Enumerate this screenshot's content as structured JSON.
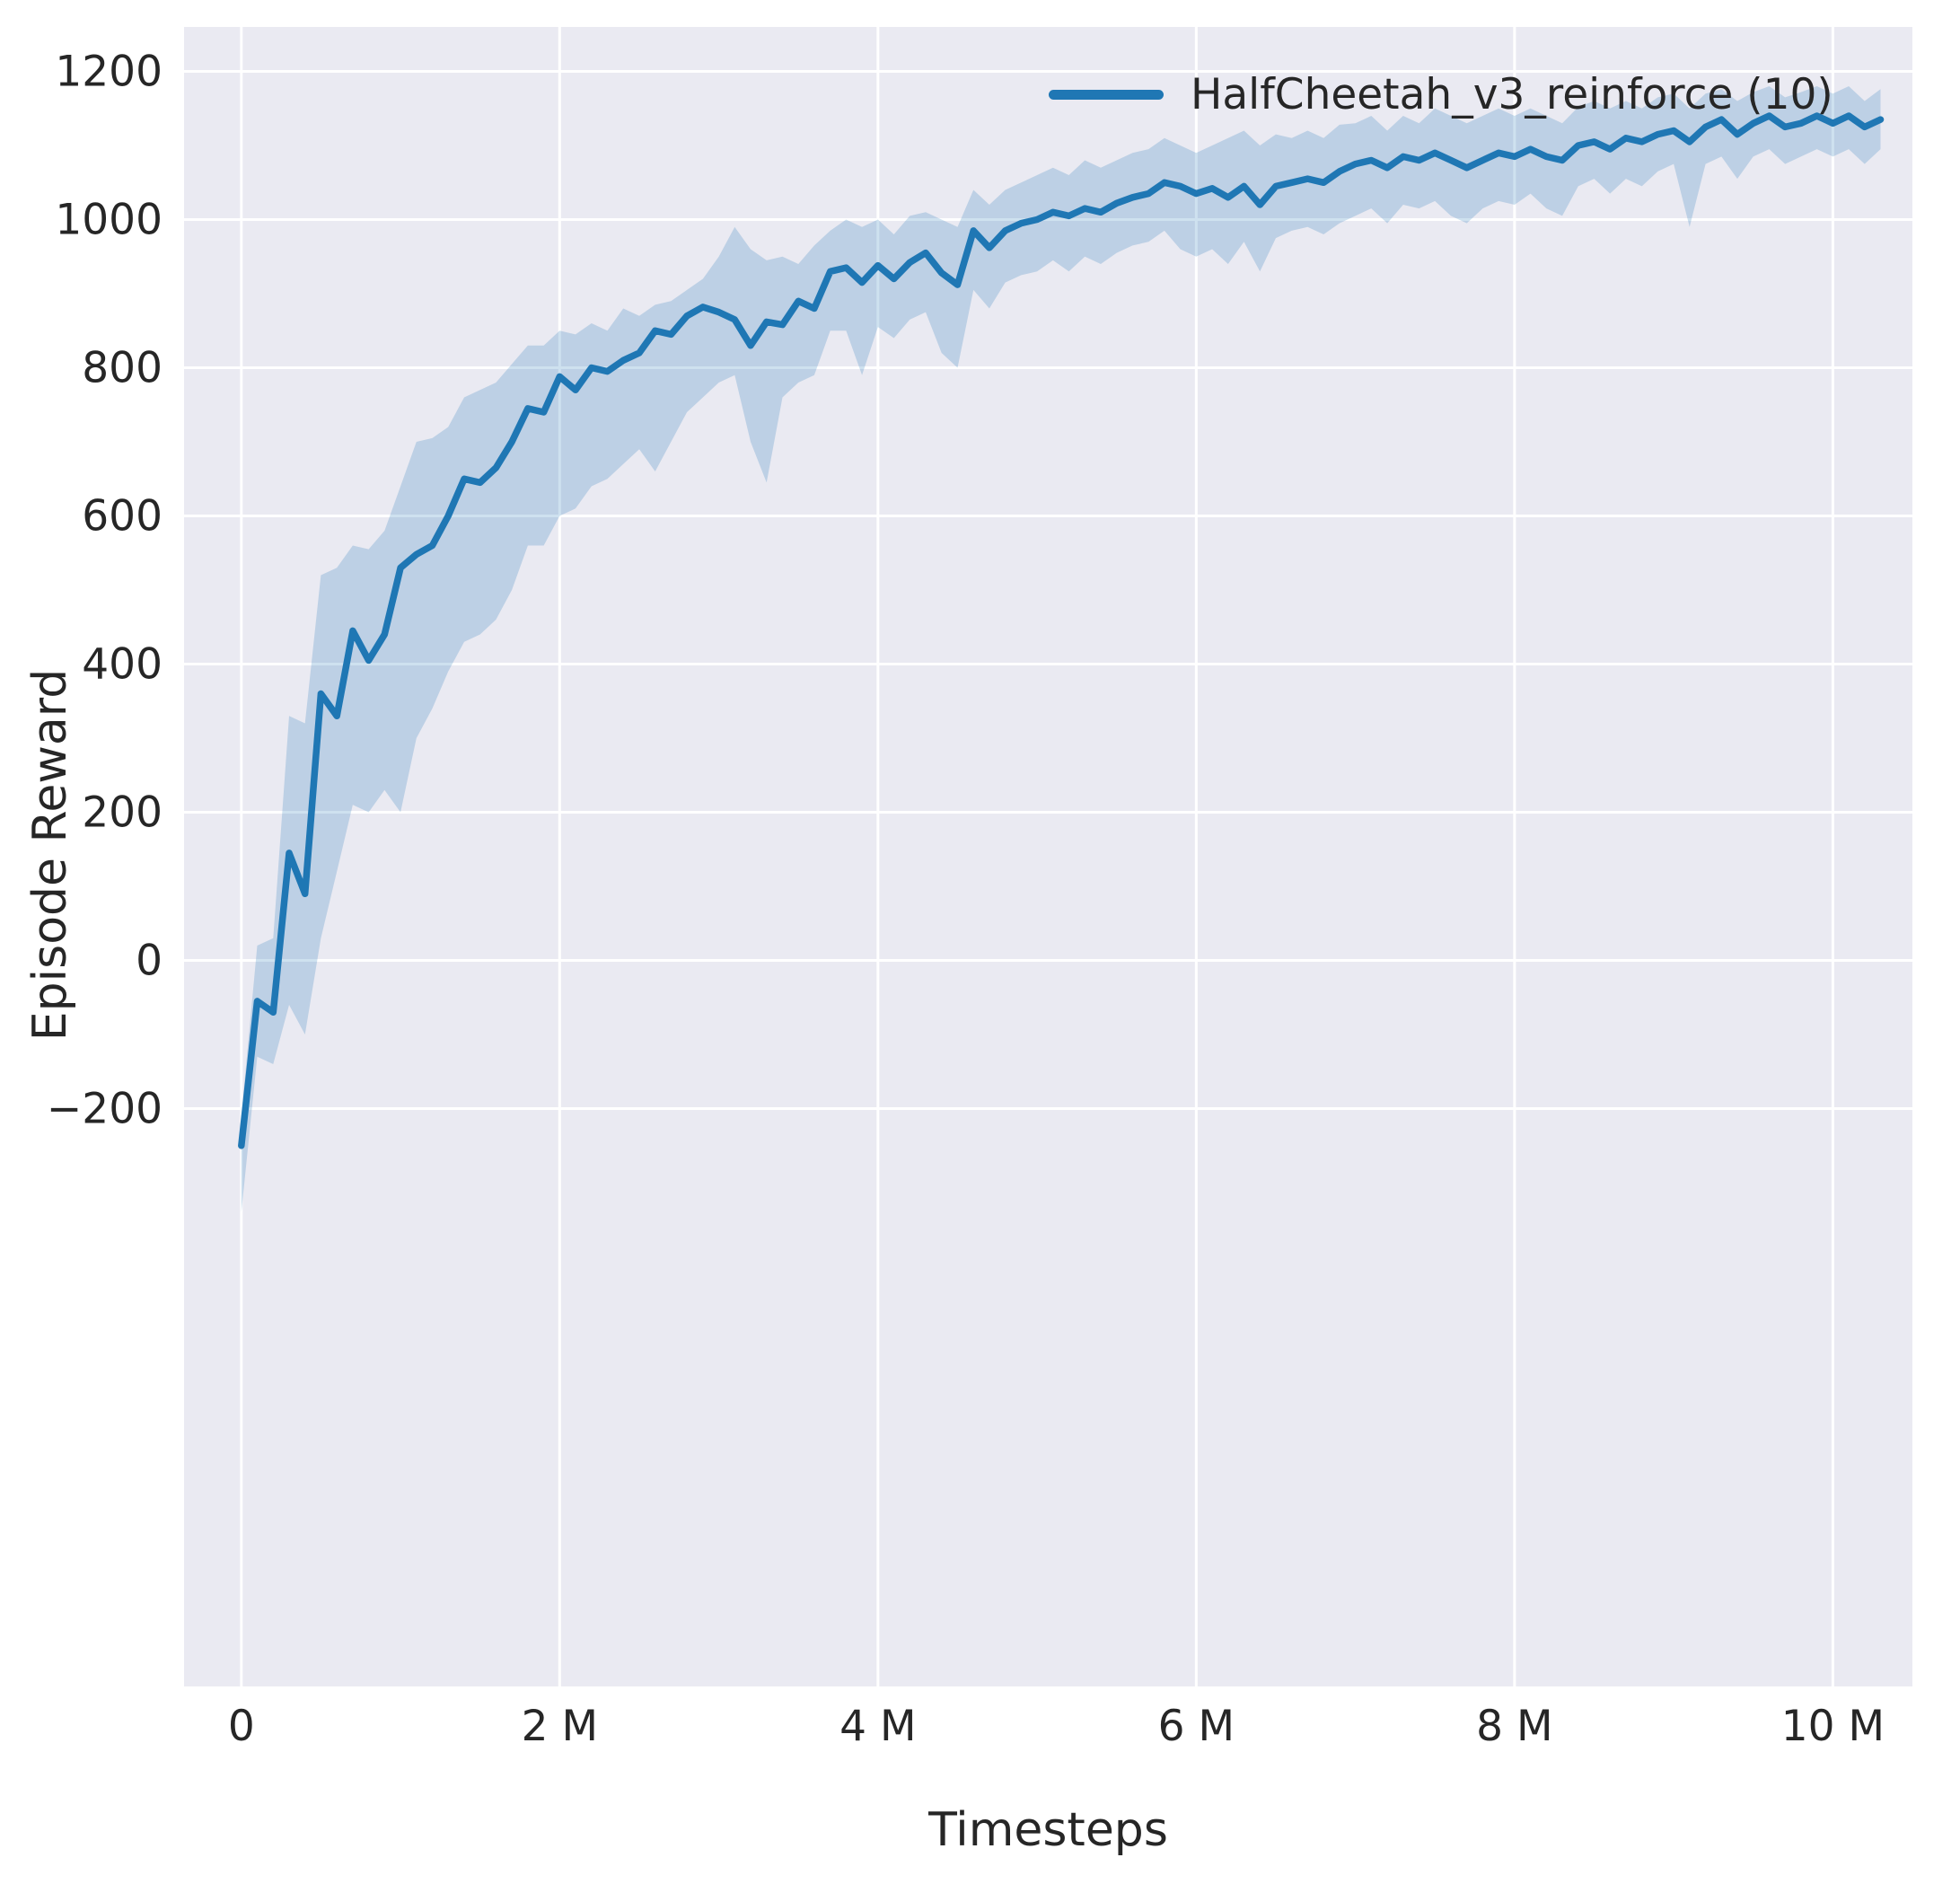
{
  "figure": {
    "xlabel": "Timesteps",
    "ylabel": "Episode Reward",
    "legend": {
      "label": "HalfCheetah_v3_reinforce (10)"
    }
  },
  "chart_data": {
    "type": "line",
    "title": "",
    "xlabel": "Timesteps",
    "ylabel": "Episode Reward",
    "legend": [
      "HalfCheetah_v3_reinforce (10)"
    ],
    "legend_position": "upper right",
    "grid": true,
    "x_unit": "millions of timesteps",
    "xlim": [
      -0.36,
      10.5
    ],
    "ylim": [
      -980,
      1260
    ],
    "xticks": {
      "values": [
        0,
        2,
        4,
        6,
        8,
        10
      ],
      "labels": [
        "0",
        "2 M",
        "4 M",
        "6 M",
        "8 M",
        "10 M"
      ]
    },
    "yticks": {
      "values": [
        -200,
        0,
        200,
        400,
        600,
        800,
        1000,
        1200
      ],
      "labels": [
        "−200",
        "0",
        "200",
        "400",
        "600",
        "800",
        "1000",
        "1200"
      ]
    },
    "colors": {
      "line": "#1f77b4",
      "band": "#1f77b4",
      "band_opacity": 0.22,
      "plot_bg": "#eaeaf2",
      "grid": "#ffffff",
      "text": "#262626"
    },
    "series": [
      {
        "name": "HalfCheetah_v3_reinforce (10)",
        "x": [
          0,
          0.1,
          0.2,
          0.3,
          0.4,
          0.5,
          0.6,
          0.7,
          0.8,
          0.9,
          1.0,
          1.1,
          1.2,
          1.3,
          1.4,
          1.5,
          1.6,
          1.7,
          1.8,
          1.9,
          2.0,
          2.1,
          2.2,
          2.3,
          2.4,
          2.5,
          2.6,
          2.7,
          2.8,
          2.9,
          3.0,
          3.1,
          3.2,
          3.3,
          3.4,
          3.5,
          3.6,
          3.7,
          3.8,
          3.9,
          4.0,
          4.1,
          4.2,
          4.3,
          4.4,
          4.5,
          4.6,
          4.7,
          4.8,
          4.9,
          5.0,
          5.1,
          5.2,
          5.3,
          5.4,
          5.5,
          5.6,
          5.7,
          5.8,
          5.9,
          6.0,
          6.1,
          6.2,
          6.3,
          6.4,
          6.5,
          6.6,
          6.7,
          6.8,
          6.9,
          7.0,
          7.1,
          7.2,
          7.3,
          7.4,
          7.5,
          7.6,
          7.7,
          7.8,
          7.9,
          8.0,
          8.1,
          8.2,
          8.3,
          8.4,
          8.5,
          8.6,
          8.7,
          8.8,
          8.9,
          9.0,
          9.1,
          9.2,
          9.3,
          9.4,
          9.5,
          9.6,
          9.7,
          9.8,
          9.9,
          10.0,
          10.1,
          10.2,
          10.3
        ],
        "mean": [
          -250,
          -55,
          -70,
          145,
          90,
          360,
          330,
          445,
          405,
          440,
          530,
          548,
          560,
          600,
          650,
          645,
          665,
          700,
          745,
          740,
          788,
          770,
          800,
          795,
          810,
          820,
          850,
          845,
          870,
          882,
          875,
          865,
          830,
          862,
          858,
          890,
          880,
          930,
          935,
          915,
          938,
          920,
          942,
          955,
          928,
          912,
          985,
          962,
          985,
          995,
          1000,
          1010,
          1005,
          1015,
          1010,
          1022,
          1030,
          1035,
          1050,
          1045,
          1035,
          1042,
          1030,
          1045,
          1020,
          1045,
          1050,
          1055,
          1050,
          1065,
          1075,
          1080,
          1070,
          1085,
          1080,
          1090,
          1080,
          1070,
          1080,
          1090,
          1085,
          1095,
          1085,
          1080,
          1100,
          1105,
          1095,
          1110,
          1105,
          1115,
          1120,
          1105,
          1125,
          1135,
          1115,
          1130,
          1140,
          1125,
          1130,
          1140,
          1130,
          1140,
          1125,
          1135
        ],
        "band_low": [
          -340,
          -130,
          -140,
          -60,
          -100,
          30,
          120,
          210,
          200,
          230,
          200,
          300,
          340,
          390,
          430,
          440,
          460,
          500,
          560,
          560,
          600,
          610,
          640,
          650,
          670,
          690,
          660,
          700,
          740,
          760,
          780,
          790,
          700,
          645,
          760,
          780,
          790,
          850,
          850,
          790,
          855,
          840,
          865,
          875,
          820,
          800,
          905,
          880,
          915,
          925,
          930,
          945,
          930,
          950,
          940,
          955,
          965,
          970,
          985,
          960,
          950,
          960,
          940,
          970,
          930,
          975,
          985,
          990,
          980,
          995,
          1005,
          1015,
          995,
          1020,
          1015,
          1025,
          1005,
          995,
          1015,
          1025,
          1020,
          1035,
          1015,
          1005,
          1045,
          1055,
          1035,
          1055,
          1045,
          1065,
          1075,
          990,
          1075,
          1085,
          1055,
          1085,
          1095,
          1075,
          1085,
          1095,
          1085,
          1095,
          1075,
          1095
        ],
        "band_high": [
          -210,
          20,
          30,
          330,
          320,
          520,
          530,
          560,
          555,
          580,
          640,
          700,
          705,
          720,
          760,
          770,
          780,
          805,
          830,
          830,
          850,
          845,
          860,
          850,
          880,
          870,
          885,
          890,
          905,
          920,
          950,
          990,
          960,
          945,
          950,
          940,
          965,
          985,
          1000,
          990,
          1000,
          980,
          1005,
          1010,
          1000,
          990,
          1040,
          1020,
          1040,
          1050,
          1060,
          1070,
          1060,
          1080,
          1070,
          1080,
          1090,
          1095,
          1110,
          1100,
          1090,
          1100,
          1110,
          1120,
          1100,
          1115,
          1110,
          1120,
          1110,
          1128,
          1130,
          1140,
          1120,
          1140,
          1130,
          1150,
          1140,
          1130,
          1140,
          1150,
          1140,
          1150,
          1140,
          1130,
          1152,
          1160,
          1150,
          1160,
          1150,
          1165,
          1170,
          1150,
          1170,
          1176,
          1160,
          1172,
          1180,
          1165,
          1172,
          1180,
          1170,
          1180,
          1160,
          1176
        ]
      }
    ]
  }
}
